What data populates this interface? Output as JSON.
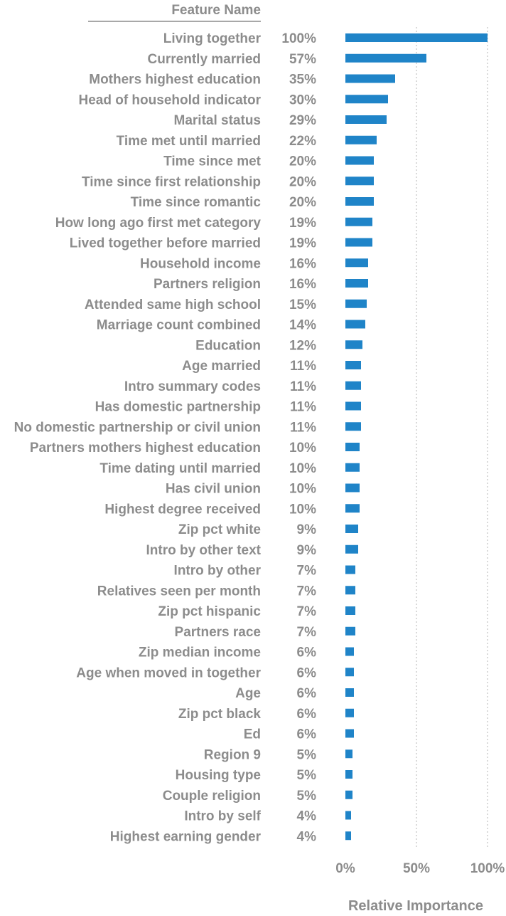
{
  "chart_data": {
    "type": "bar",
    "orientation": "horizontal",
    "column_header": "Feature Name",
    "xlabel": "Relative Importance",
    "ylabel": "",
    "xlim": [
      0,
      100
    ],
    "xticks": [
      "0%",
      "50%",
      "100%"
    ],
    "grid": "vertical dotted at 50% and 100%",
    "bar_color": "#1f84c8",
    "text_color": "#8c8c8c",
    "categories": [
      "Living together",
      "Currently married",
      "Mothers highest education",
      "Head of household indicator",
      "Marital status",
      "Time met until married",
      "Time since met",
      "Time since first relationship",
      "Time since romantic",
      "How long ago first met category",
      "Lived together before married",
      "Household income",
      "Partners religion",
      "Attended same high school",
      "Marriage count combined",
      "Education",
      "Age married",
      "Intro summary codes",
      "Has domestic partnership",
      "No domestic partnership or civil union",
      "Partners mothers highest education",
      "Time dating until married",
      "Has civil union",
      "Highest degree received",
      "Zip pct white",
      "Intro by other text",
      "Intro by other",
      "Relatives seen per month",
      "Zip pct hispanic",
      "Partners race",
      "Zip median income",
      "Age when moved in together",
      "Age",
      "Zip pct black",
      "Ed",
      "Region 9",
      "Housing type",
      "Couple religion",
      "Intro by self",
      "Highest earning gender"
    ],
    "values": [
      100,
      57,
      35,
      30,
      29,
      22,
      20,
      20,
      20,
      19,
      19,
      16,
      16,
      15,
      14,
      12,
      11,
      11,
      11,
      11,
      10,
      10,
      10,
      10,
      9,
      9,
      7,
      7,
      7,
      7,
      6,
      6,
      6,
      6,
      6,
      5,
      5,
      5,
      4,
      4
    ],
    "value_labels": [
      "100%",
      "57%",
      "35%",
      "30%",
      "29%",
      "22%",
      "20%",
      "20%",
      "20%",
      "19%",
      "19%",
      "16%",
      "16%",
      "15%",
      "14%",
      "12%",
      "11%",
      "11%",
      "11%",
      "11%",
      "10%",
      "10%",
      "10%",
      "10%",
      "9%",
      "9%",
      "7%",
      "7%",
      "7%",
      "7%",
      "6%",
      "6%",
      "6%",
      "6%",
      "6%",
      "5%",
      "5%",
      "5%",
      "4%",
      "4%"
    ]
  }
}
